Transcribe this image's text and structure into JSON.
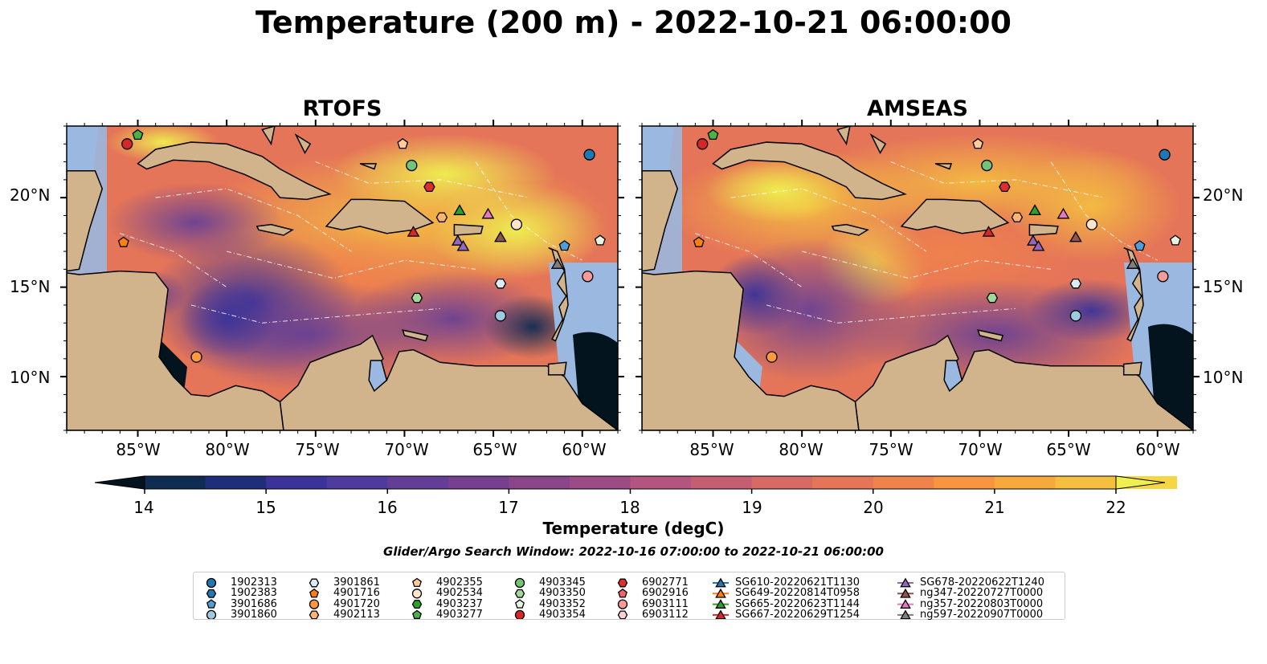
{
  "title": "Temperature (200 m) - 2022-10-21 06:00:00",
  "panels": [
    {
      "title": "RTOFS"
    },
    {
      "title": "AMSEAS"
    }
  ],
  "latitude_labels": [
    "20°N",
    "15°N",
    "10°N"
  ],
  "longitude_labels": [
    "85°W",
    "80°W",
    "75°W",
    "70°W",
    "65°W",
    "60°W"
  ],
  "map_extent": {
    "lon": [
      -89,
      -58
    ],
    "lat": [
      7,
      24
    ]
  },
  "colorbar": {
    "label": "Temperature (degC)",
    "ticks": [
      "14",
      "15",
      "16",
      "17",
      "18",
      "19",
      "20",
      "21",
      "22"
    ],
    "range": [
      14,
      22
    ],
    "colormap": "thermal",
    "colors": [
      "#03141f",
      "#0f2c52",
      "#1f2e7a",
      "#3b3399",
      "#4f3a9e",
      "#633e97",
      "#763f8f",
      "#8a4688",
      "#9c4c84",
      "#b3557e",
      "#c65e73",
      "#d86a66",
      "#e57558",
      "#f0834b",
      "#f89540",
      "#f7a93e",
      "#f5c040",
      "#f5d746",
      "#eff050"
    ]
  },
  "search_window": "Glider/Argo Search Window: 2022-10-16 07:00:00 to 2022-10-21 06:00:00",
  "legend": {
    "columns": [
      [
        {
          "label": "1902313",
          "marker": "circle",
          "color": "#1f77b4"
        },
        {
          "label": "1902383",
          "marker": "hexagon",
          "color": "#1f77b4"
        },
        {
          "label": "3901686",
          "marker": "pentagon",
          "color": "#4e9fd9"
        },
        {
          "label": "3901860",
          "marker": "circle",
          "color": "#9ecae1"
        }
      ],
      [
        {
          "label": "3901861",
          "marker": "hexagon",
          "color": "#deebf7"
        },
        {
          "label": "4901716",
          "marker": "pentagon",
          "color": "#ff7f0e"
        },
        {
          "label": "4901720",
          "marker": "circle",
          "color": "#ff9a3c"
        },
        {
          "label": "4902113",
          "marker": "hexagon",
          "color": "#ffb470"
        }
      ],
      [
        {
          "label": "4902355",
          "marker": "pentagon",
          "color": "#ffcc99"
        },
        {
          "label": "4902534",
          "marker": "circle",
          "color": "#ffe5cc"
        },
        {
          "label": "4903237",
          "marker": "hexagon",
          "color": "#2ca02c"
        },
        {
          "label": "4903277",
          "marker": "pentagon",
          "color": "#47b347"
        }
      ],
      [
        {
          "label": "4903345",
          "marker": "circle",
          "color": "#74c476"
        },
        {
          "label": "4903350",
          "marker": "hexagon",
          "color": "#a1d99b"
        },
        {
          "label": "4903352",
          "marker": "pentagon",
          "color": "#e5f5e0"
        },
        {
          "label": "4903354",
          "marker": "circle",
          "color": "#d62728"
        }
      ],
      [
        {
          "label": "6902771",
          "marker": "hexagon",
          "color": "#de2d2d"
        },
        {
          "label": "6902916",
          "marker": "pentagon",
          "color": "#f06464"
        },
        {
          "label": "6903111",
          "marker": "circle",
          "color": "#f79a9a"
        },
        {
          "label": "6903112",
          "marker": "hexagon",
          "color": "#fcd0d0"
        }
      ],
      [
        {
          "label": "SG610-20220621T1130",
          "marker": "triangle",
          "color": "#1f77b4"
        },
        {
          "label": "SG649-20220814T0958",
          "marker": "triangle",
          "color": "#ff7f0e"
        },
        {
          "label": "SG665-20220623T1144",
          "marker": "triangle",
          "color": "#2ca02c"
        },
        {
          "label": "SG667-20220629T1254",
          "marker": "triangle",
          "color": "#d62728"
        }
      ],
      [
        {
          "label": "SG678-20220622T1240",
          "marker": "triangle",
          "color": "#9467bd"
        },
        {
          "label": "ng347-20220727T0000",
          "marker": "triangle",
          "color": "#8c564b"
        },
        {
          "label": "ng357-20220803T0000",
          "marker": "triangle",
          "color": "#e377c2"
        },
        {
          "label": "ng597-20220907T0000",
          "marker": "triangle",
          "color": "#7f7f7f"
        }
      ]
    ]
  },
  "markers": [
    {
      "id": "1902313",
      "marker": "circle",
      "color": "#1f77b4",
      "lon": -59.6,
      "lat": 22.4
    },
    {
      "id": "3901686",
      "marker": "pentagon",
      "color": "#4e9fd9",
      "lon": -61.0,
      "lat": 17.3
    },
    {
      "id": "3901860",
      "marker": "circle",
      "color": "#9ecae1",
      "lon": -64.6,
      "lat": 13.4
    },
    {
      "id": "3901861",
      "marker": "hexagon",
      "color": "#deebf7",
      "lon": -64.6,
      "lat": 15.2
    },
    {
      "id": "4901716",
      "marker": "pentagon",
      "color": "#ff7f0e",
      "lon": -85.8,
      "lat": 17.5
    },
    {
      "id": "4901720",
      "marker": "circle",
      "color": "#ff9a3c",
      "lon": -81.7,
      "lat": 11.1
    },
    {
      "id": "4902113",
      "marker": "hexagon",
      "color": "#ffb470",
      "lon": -67.9,
      "lat": 18.9
    },
    {
      "id": "4902355",
      "marker": "pentagon",
      "color": "#ffcc99",
      "lon": -70.1,
      "lat": 23.0
    },
    {
      "id": "4902534",
      "marker": "circle",
      "color": "#ffe5cc",
      "lon": -63.7,
      "lat": 18.5
    },
    {
      "id": "4903277",
      "marker": "pentagon",
      "color": "#47b347",
      "lon": -85.0,
      "lat": 23.5
    },
    {
      "id": "4903345",
      "marker": "circle",
      "color": "#74c476",
      "lon": -69.6,
      "lat": 21.8
    },
    {
      "id": "4903350",
      "marker": "hexagon",
      "color": "#a1d99b",
      "lon": -69.3,
      "lat": 14.4
    },
    {
      "id": "4903352",
      "marker": "pentagon",
      "color": "#e5f5e0",
      "lon": -59.0,
      "lat": 17.6
    },
    {
      "id": "4903354",
      "marker": "circle",
      "color": "#d62728",
      "lon": -85.6,
      "lat": 23.0
    },
    {
      "id": "6902771",
      "marker": "hexagon",
      "color": "#de2d2d",
      "lon": -68.6,
      "lat": 20.6
    },
    {
      "id": "6903111",
      "marker": "circle",
      "color": "#f79a9a",
      "lon": -59.7,
      "lat": 15.6
    },
    {
      "id": "SG665-20220623T1144",
      "marker": "triangle",
      "color": "#2ca02c",
      "lon": -66.9,
      "lat": 19.3
    },
    {
      "id": "SG667-20220629T1254",
      "marker": "triangle",
      "color": "#d62728",
      "lon": -69.5,
      "lat": 18.1
    },
    {
      "id": "SG678-20220622T1240",
      "marker": "triangle",
      "color": "#9467bd",
      "lon": -67.0,
      "lat": 17.6
    },
    {
      "id": "SG678-20220622T1240",
      "marker": "triangle",
      "color": "#9467bd",
      "lon": -66.7,
      "lat": 17.3
    },
    {
      "id": "ng347-20220727T0000",
      "marker": "triangle",
      "color": "#8c564b",
      "lon": -64.6,
      "lat": 17.8
    },
    {
      "id": "ng357-20220803T0000",
      "marker": "triangle",
      "color": "#e377c2",
      "lon": -65.3,
      "lat": 19.1
    },
    {
      "id": "ng597-20220907T0000",
      "marker": "triangle",
      "color": "#7f7f7f",
      "lon": -61.4,
      "lat": 16.3
    }
  ]
}
